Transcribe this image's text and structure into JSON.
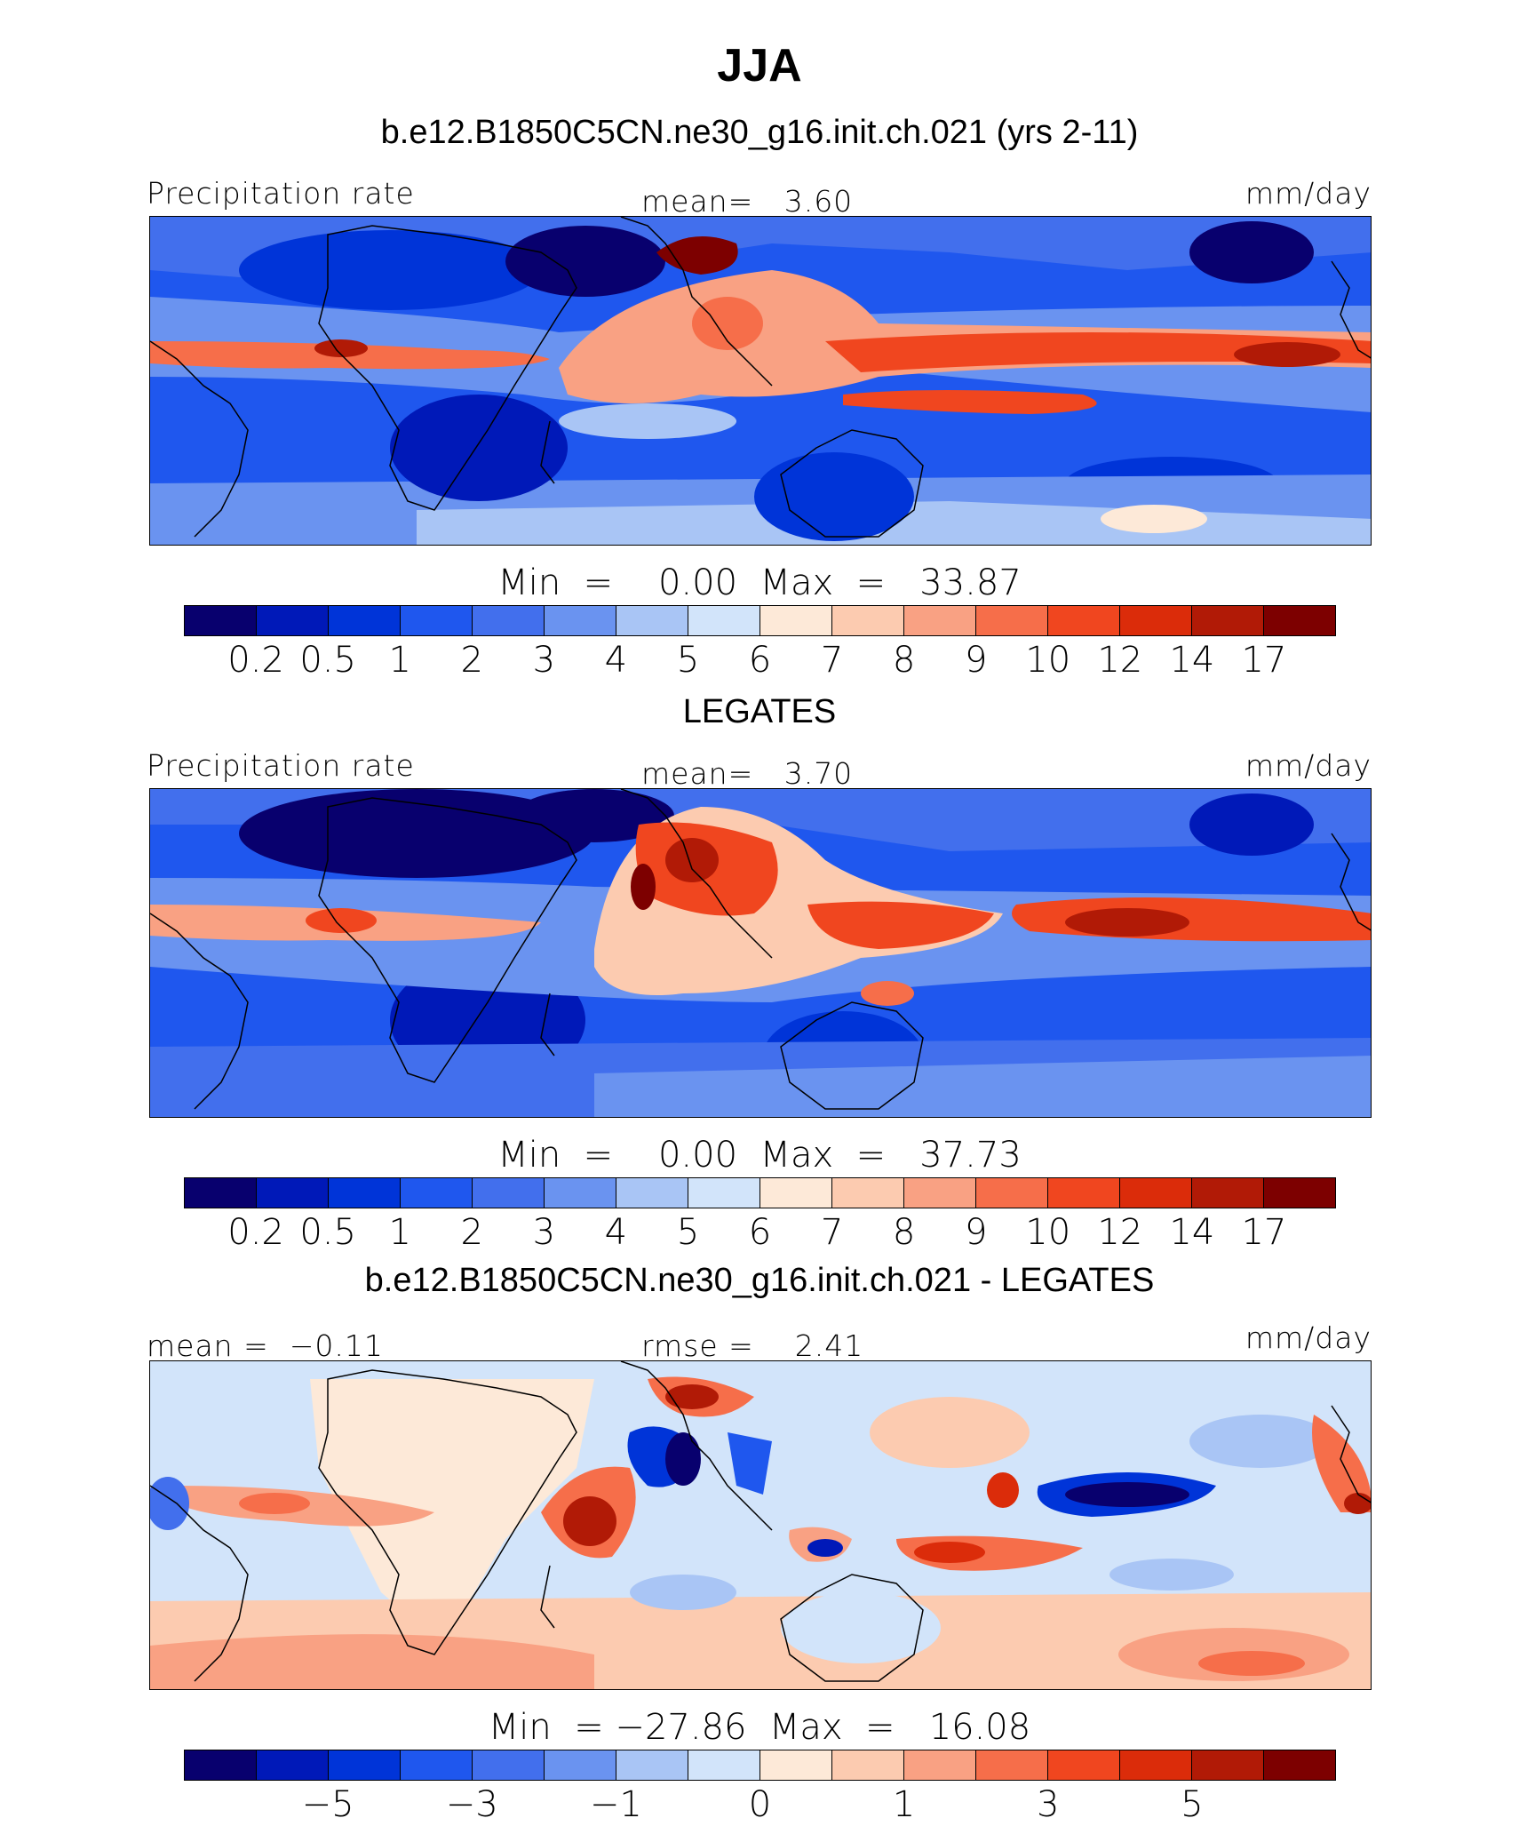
{
  "title": "JJA",
  "colors": [
    "#08006e",
    "#0019b8",
    "#0034d8",
    "#1f57ee",
    "#426fed",
    "#6a93f0",
    "#a9c5f5",
    "#d2e4fa",
    "#fde9d8",
    "#fccbb0",
    "#f9a183",
    "#f66e4a",
    "#f0461f",
    "#db2c0a",
    "#b11a06",
    "#7d0000"
  ],
  "abs_ticks": [
    "0.2",
    "0.5",
    "1",
    "2",
    "3",
    "4",
    "5",
    "6",
    "7",
    "8",
    "9",
    "10",
    "12",
    "14",
    "17"
  ],
  "diff_ticks": [
    "−5",
    "−3",
    "−1",
    "0",
    "1",
    "3",
    "5"
  ],
  "panels": [
    {
      "subtitle": "b.e12.B1850C5CN.ne30_g16.init.ch.021 (yrs 2-11)",
      "left_label": "Precipitation rate",
      "center_label": "mean=   3.60",
      "units": "mm/day",
      "min_label": "Min  =",
      "min_value": "0.00",
      "max_label": "Max  =",
      "max_value": "33.87"
    },
    {
      "subtitle": "LEGATES",
      "left_label": "Precipitation rate",
      "center_label": "mean=   3.70",
      "units": "mm/day",
      "min_label": "Min  =",
      "min_value": "0.00",
      "max_label": "Max  =",
      "max_value": "37.73"
    },
    {
      "subtitle": "b.e12.B1850C5CN.ne30_g16.init.ch.021 - LEGATES",
      "left_label": "mean =  −0.11",
      "center_label": "rmse =    2.41",
      "units": "mm/day",
      "min_label": "Min  =",
      "min_value": "−27.86",
      "max_label": "Max  =",
      "max_value": "16.08"
    }
  ]
}
